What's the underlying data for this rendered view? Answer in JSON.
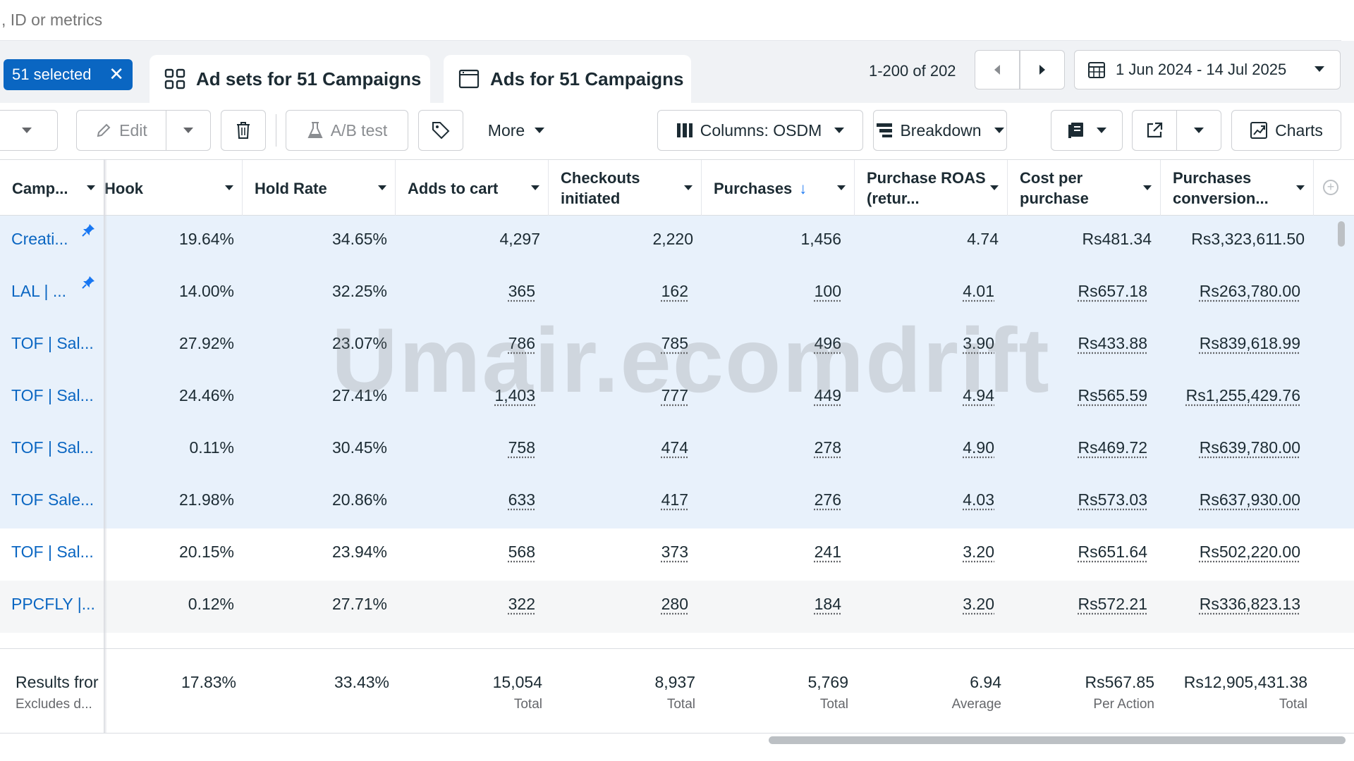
{
  "search": {
    "placeholder": ", ID or metrics"
  },
  "selection": {
    "label": "51 selected",
    "clear_glyph": "✕"
  },
  "tabs": [
    {
      "label": "Ad sets for 51 Campaigns",
      "icon": "grid-icon"
    },
    {
      "label": "Ads for 51 Campaigns",
      "icon": "ad-window-icon"
    }
  ],
  "pager": {
    "range_text": "1-200 of 202"
  },
  "date_range": {
    "label": "1 Jun 2024 - 14 Jul 2025",
    "icon": "calendar-icon"
  },
  "toolbar": {
    "edit_label": "Edit",
    "ab_test_label": "A/B test",
    "more_label": "More",
    "columns_label": "Columns: OSDM",
    "breakdown_label": "Breakdown",
    "charts_label": "Charts"
  },
  "columns": [
    {
      "label": "Camp..."
    },
    {
      "label": "Hook"
    },
    {
      "label": "Hold Rate"
    },
    {
      "label": "Adds to cart"
    },
    {
      "label": "Checkouts initiated"
    },
    {
      "label": "Purchases",
      "sorted": "descending"
    },
    {
      "label": "Purchase ROAS (retur..."
    },
    {
      "label": "Cost per purchase"
    },
    {
      "label": "Purchases conversion..."
    }
  ],
  "rows": [
    {
      "name": "Creati...",
      "pinned": true,
      "hook": "19.64%",
      "hold": "34.65%",
      "atc": "4,297",
      "checkouts": "2,220",
      "purchases": "1,456",
      "roas": "4.74",
      "cpp": "Rs481.34",
      "conv": "Rs3,323,611.50"
    },
    {
      "name": "LAL | ...",
      "pinned": true,
      "hook": "14.00%",
      "hold": "32.25%",
      "atc": "365",
      "checkouts": "162",
      "purchases": "100",
      "roas": "4.01",
      "cpp": "Rs657.18",
      "conv": "Rs263,780.00"
    },
    {
      "name": "TOF | Sal...",
      "pinned": false,
      "hook": "27.92%",
      "hold": "23.07%",
      "atc": "786",
      "checkouts": "785",
      "purchases": "496",
      "roas": "3.90",
      "cpp": "Rs433.88",
      "conv": "Rs839,618.99"
    },
    {
      "name": "TOF | Sal...",
      "pinned": false,
      "hook": "24.46%",
      "hold": "27.41%",
      "atc": "1,403",
      "checkouts": "777",
      "purchases": "449",
      "roas": "4.94",
      "cpp": "Rs565.59",
      "conv": "Rs1,255,429.76"
    },
    {
      "name": "TOF | Sal...",
      "pinned": false,
      "hook": "0.11%",
      "hold": "30.45%",
      "atc": "758",
      "checkouts": "474",
      "purchases": "278",
      "roas": "4.90",
      "cpp": "Rs469.72",
      "conv": "Rs639,780.00"
    },
    {
      "name": "TOF Sale...",
      "pinned": false,
      "hook": "21.98%",
      "hold": "20.86%",
      "atc": "633",
      "checkouts": "417",
      "purchases": "276",
      "roas": "4.03",
      "cpp": "Rs573.03",
      "conv": "Rs637,930.00"
    },
    {
      "name": "TOF | Sal...",
      "pinned": false,
      "hook": "20.15%",
      "hold": "23.94%",
      "atc": "568",
      "checkouts": "373",
      "purchases": "241",
      "roas": "3.20",
      "cpp": "Rs651.64",
      "conv": "Rs502,220.00"
    },
    {
      "name": "PPCFLY |...",
      "pinned": false,
      "hook": "0.12%",
      "hold": "27.71%",
      "atc": "322",
      "checkouts": "280",
      "purchases": "184",
      "roas": "3.20",
      "cpp": "Rs572.21",
      "conv": "Rs336,823.13"
    }
  ],
  "totals": {
    "label": "Results fror",
    "sublabel": "Excludes d...",
    "hook": "17.83%",
    "hold": "33.43%",
    "atc": "15,054",
    "atc_sub": "Total",
    "checkouts": "8,937",
    "checkouts_sub": "Total",
    "purchases": "5,769",
    "purchases_sub": "Total",
    "roas": "6.94",
    "roas_sub": "Average",
    "cpp": "Rs567.85",
    "cpp_sub": "Per Action",
    "conv": "Rs12,905,431.38",
    "conv_sub": "Total"
  },
  "watermark": "Umair.ecomdrift",
  "colors": {
    "accent": "#0a66c2",
    "selected_row": "#e8f1fb",
    "link": "#0a66c2",
    "sort_arrow": "#1877f2"
  }
}
